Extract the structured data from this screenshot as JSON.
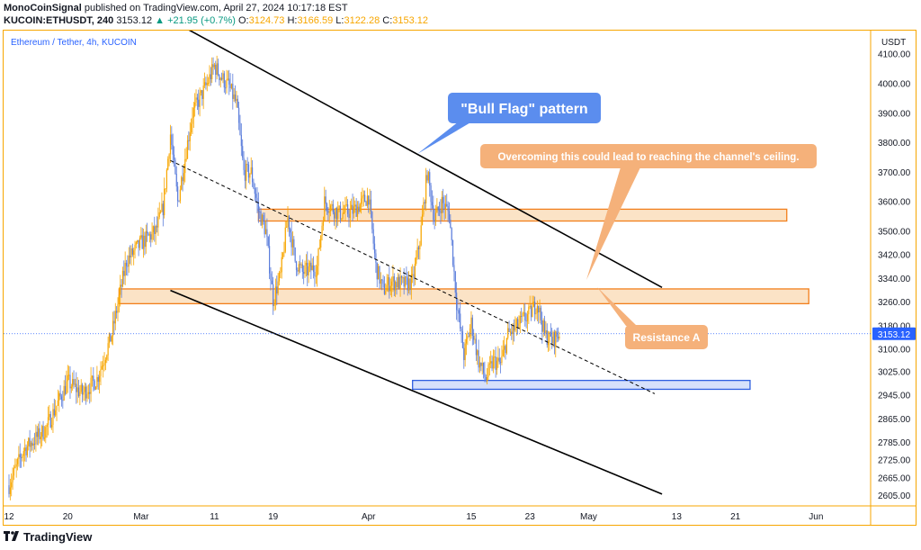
{
  "header": {
    "author": "MonoCoinSignal",
    "published_text": "published on TradingView.com, April 27, 2024 10:17:18 EST",
    "symbol": "KUCOIN:ETHUSDT, 240",
    "last": "3153.12",
    "change": "▲ +21.95 (+0.7%)",
    "o_label": "O:",
    "o": "3124.73",
    "h_label": "H:",
    "h": "3166.59",
    "l_label": "L:",
    "l": "3122.28",
    "c_label": "C:",
    "c": "3153.12"
  },
  "footer": {
    "brand": "TradingView",
    "logo_icon": "tradingview-logo-icon"
  },
  "colors": {
    "orange": "#f7a600",
    "up": "#f7a600",
    "down": "#5b7ddb",
    "resistance_fill": "#fbe3c6",
    "resistance_stroke": "#f27f1c",
    "support_fill": "#d6e1fb",
    "support_stroke": "#2f5fe0",
    "callout_blue": "#5b8dee",
    "callout_orange": "#f5b17a",
    "price_tag": "#2962ff"
  },
  "chart_data": {
    "type": "candlestick",
    "title": "Ethereum / Tether, 4h, KUCOIN",
    "y_unit": "USDT",
    "ylim": [
      2570,
      4180
    ],
    "y_ticks": [
      "4100.00",
      "4000.00",
      "3900.00",
      "3800.00",
      "3700.00",
      "3600.00",
      "3500.00",
      "3420.00",
      "3340.00",
      "3260.00",
      "3180.00",
      "3100.00",
      "3025.00",
      "2945.00",
      "2865.00",
      "2785.00",
      "2725.00",
      "2665.00",
      "2605.00"
    ],
    "x_ticks": [
      "12",
      "20",
      "Mar",
      "11",
      "19",
      "Apr",
      "15",
      "23",
      "May",
      "13",
      "21",
      "Jun"
    ],
    "x_range": [
      "2024-02-12",
      "2024-06-05"
    ],
    "last_price": "3153.12",
    "price_path": [
      [
        "2024-02-12",
        2640
      ],
      [
        "2024-02-14",
        2760
      ],
      [
        "2024-02-17",
        2830
      ],
      [
        "2024-02-20",
        2990
      ],
      [
        "2024-02-22",
        2950
      ],
      [
        "2024-02-24",
        3000
      ],
      [
        "2024-02-26",
        3150
      ],
      [
        "2024-02-28",
        3400
      ],
      [
        "2024-03-01",
        3460
      ],
      [
        "2024-03-03",
        3500
      ],
      [
        "2024-03-04",
        3580
      ],
      [
        "2024-03-05",
        3830
      ],
      [
        "2024-03-06",
        3600
      ],
      [
        "2024-03-08",
        3900
      ],
      [
        "2024-03-10",
        4000
      ],
      [
        "2024-03-11",
        4060
      ],
      [
        "2024-03-12",
        4020
      ],
      [
        "2024-03-13",
        3990
      ],
      [
        "2024-03-14",
        3930
      ],
      [
        "2024-03-15",
        3700
      ],
      [
        "2024-03-16",
        3700
      ],
      [
        "2024-03-17",
        3570
      ],
      [
        "2024-03-18",
        3500
      ],
      [
        "2024-03-19",
        3270
      ],
      [
        "2024-03-20",
        3350
      ],
      [
        "2024-03-21",
        3550
      ],
      [
        "2024-03-22",
        3400
      ],
      [
        "2024-03-23",
        3360
      ],
      [
        "2024-03-25",
        3380
      ],
      [
        "2024-03-26",
        3600
      ],
      [
        "2024-03-28",
        3560
      ],
      [
        "2024-03-30",
        3570
      ],
      [
        "2024-04-01",
        3620
      ],
      [
        "2024-04-02",
        3380
      ],
      [
        "2024-04-03",
        3300
      ],
      [
        "2024-04-04",
        3330
      ],
      [
        "2024-04-06",
        3320
      ],
      [
        "2024-04-07",
        3330
      ],
      [
        "2024-04-08",
        3470
      ],
      [
        "2024-04-09",
        3700
      ],
      [
        "2024-04-10",
        3540
      ],
      [
        "2024-04-11",
        3600
      ],
      [
        "2024-04-12",
        3560
      ],
      [
        "2024-04-13",
        3260
      ],
      [
        "2024-04-14",
        3080
      ],
      [
        "2024-04-15",
        3190
      ],
      [
        "2024-04-16",
        3060
      ],
      [
        "2024-04-17",
        3000
      ],
      [
        "2024-04-18",
        3060
      ],
      [
        "2024-04-19",
        3050
      ],
      [
        "2024-04-20",
        3150
      ],
      [
        "2024-04-21",
        3170
      ],
      [
        "2024-04-22",
        3200
      ],
      [
        "2024-04-23",
        3220
      ],
      [
        "2024-04-24",
        3260
      ],
      [
        "2024-04-25",
        3150
      ],
      [
        "2024-04-26",
        3130
      ],
      [
        "2024-04-27",
        3153
      ]
    ],
    "resistance_zones": [
      {
        "date_from": "2024-02-27",
        "date_to": "2024-05-31",
        "y_from": 3255,
        "y_to": 3305
      },
      {
        "date_from": "2024-03-17",
        "date_to": "2024-05-28",
        "y_from": 3535,
        "y_to": 3575
      }
    ],
    "support_zones": [
      {
        "date_from": "2024-04-07",
        "date_to": "2024-05-23",
        "y_from": 2965,
        "y_to": 2995
      }
    ],
    "trendlines": [
      {
        "name": "channel-top",
        "style": "solid",
        "from": [
          "2024-03-04",
          4230
        ],
        "to": [
          "2024-05-11",
          3310
        ]
      },
      {
        "name": "channel-bottom",
        "style": "solid",
        "from": [
          "2024-03-05",
          3300
        ],
        "to": [
          "2024-05-11",
          2610
        ]
      },
      {
        "name": "mid-line",
        "style": "dashed",
        "from": [
          "2024-03-05",
          3740
        ],
        "to": [
          "2024-05-10",
          2950
        ]
      }
    ],
    "annotations": [
      {
        "text": "\"Bull Flag\" pattern",
        "color": "blue"
      },
      {
        "text": "Overcoming this could lead to reaching the channel's ceiling.",
        "color": "orange"
      },
      {
        "text": "Resistance A",
        "color": "orange"
      }
    ]
  }
}
